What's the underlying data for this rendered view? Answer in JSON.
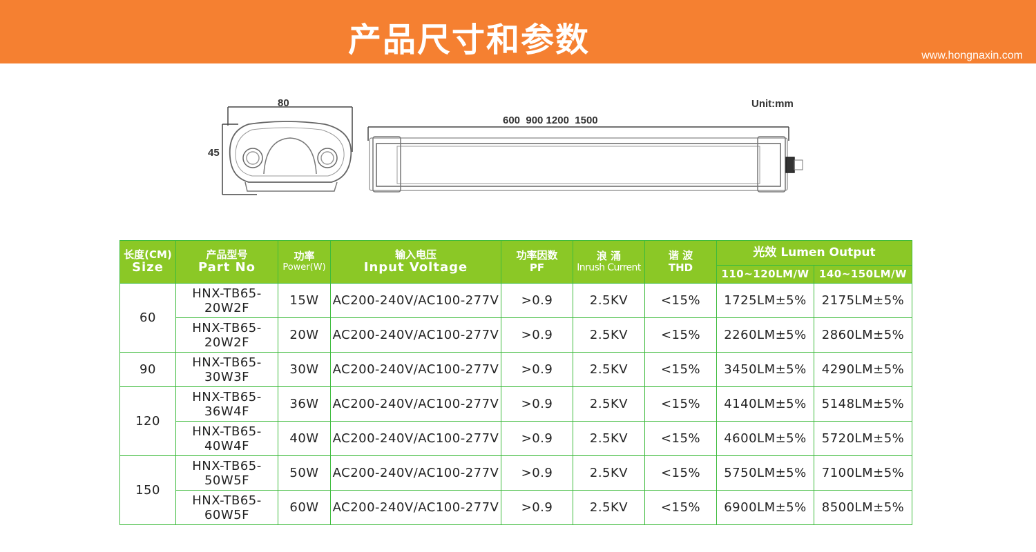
{
  "header": {
    "title": "产品尺寸和参数",
    "url": "www.hongnaxin.com",
    "color": "#f58031"
  },
  "drawing": {
    "unit_label": "Unit:mm",
    "end_width": "80",
    "end_height": "45",
    "lengths_label": "600  900 1200  1500"
  },
  "table": {
    "header_color": "#8bc826",
    "border_color": "#3dbb3c",
    "headers": {
      "size": {
        "cn": "长度(CM)",
        "en": "Size"
      },
      "part": {
        "cn": "产品型号",
        "en": "Part No"
      },
      "power": {
        "cn": "功率",
        "en": "Power(W)"
      },
      "voltage": {
        "cn": "输入电压",
        "en": "Input Voltage"
      },
      "pf": {
        "cn": "功率因数",
        "en": "PF"
      },
      "inrush": {
        "cn": "浪 涌",
        "en": "Inrush Current"
      },
      "thd": {
        "cn": "谐 波",
        "en": "THD"
      },
      "lumen": {
        "cn": "光效 Lumen Output",
        "sub1": "110~120LM/W",
        "sub2": "140~150LM/W"
      }
    },
    "groups": [
      {
        "size": "60",
        "rows": [
          {
            "part": "HNX-TB65-20W2F",
            "power": "15W",
            "voltage": "AC200-240V/AC100-277V",
            "pf": ">0.9",
            "inrush": "2.5KV",
            "thd": "<15%",
            "lm1": "1725LM±5%",
            "lm2": "2175LM±5%"
          },
          {
            "part": "HNX-TB65-20W2F",
            "power": "20W",
            "voltage": "AC200-240V/AC100-277V",
            "pf": ">0.9",
            "inrush": "2.5KV",
            "thd": "<15%",
            "lm1": "2260LM±5%",
            "lm2": "2860LM±5%"
          }
        ]
      },
      {
        "size": "90",
        "rows": [
          {
            "part": "HNX-TB65-30W3F",
            "power": "30W",
            "voltage": "AC200-240V/AC100-277V",
            "pf": ">0.9",
            "inrush": "2.5KV",
            "thd": "<15%",
            "lm1": "3450LM±5%",
            "lm2": "4290LM±5%"
          }
        ]
      },
      {
        "size": "120",
        "rows": [
          {
            "part": "HNX-TB65-36W4F",
            "power": "36W",
            "voltage": "AC200-240V/AC100-277V",
            "pf": ">0.9",
            "inrush": "2.5KV",
            "thd": "<15%",
            "lm1": "4140LM±5%",
            "lm2": "5148LM±5%"
          },
          {
            "part": "HNX-TB65-40W4F",
            "power": "40W",
            "voltage": "AC200-240V/AC100-277V",
            "pf": ">0.9",
            "inrush": "2.5KV",
            "thd": "<15%",
            "lm1": "4600LM±5%",
            "lm2": "5720LM±5%"
          }
        ]
      },
      {
        "size": "150",
        "rows": [
          {
            "part": "HNX-TB65-50W5F",
            "power": "50W",
            "voltage": "AC200-240V/AC100-277V",
            "pf": ">0.9",
            "inrush": "2.5KV",
            "thd": "<15%",
            "lm1": "5750LM±5%",
            "lm2": "7100LM±5%"
          },
          {
            "part": "HNX-TB65-60W5F",
            "power": "60W",
            "voltage": "AC200-240V/AC100-277V",
            "pf": ">0.9",
            "inrush": "2.5KV",
            "thd": "<15%",
            "lm1": "6900LM±5%",
            "lm2": "8500LM±5%"
          }
        ]
      }
    ]
  }
}
